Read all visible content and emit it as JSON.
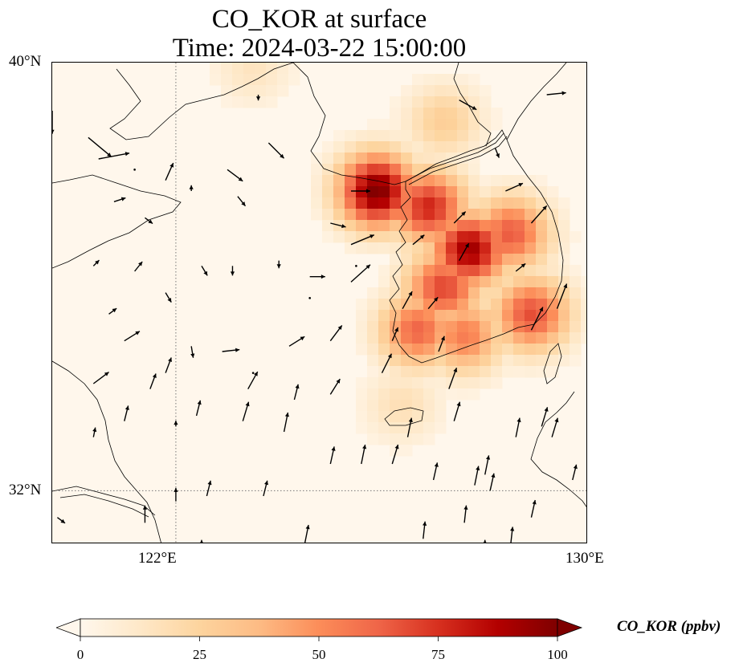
{
  "title": {
    "line1": "CO_KOR at surface",
    "line2": "Time: 2024-03-22 15:00:00"
  },
  "map": {
    "lon_range": [
      119.6,
      130
    ],
    "lat_range": [
      31,
      40
    ],
    "gridlines": {
      "lon": [
        122
      ],
      "lat": [
        32
      ]
    },
    "lat_labels": [
      {
        "value": 40,
        "text": "40°N"
      },
      {
        "value": 32,
        "text": "32°N"
      }
    ],
    "lon_labels": [
      {
        "value": 122,
        "text": "122°E"
      },
      {
        "value": 130,
        "text": "130°E"
      }
    ],
    "field": {
      "variable": "CO_KOR",
      "background_color": "#fff7ec",
      "hotspots": [
        {
          "lon": 125.9,
          "lat": 37.6,
          "value": 100
        },
        {
          "lon": 126.9,
          "lat": 37.3,
          "value": 78
        },
        {
          "lon": 127.7,
          "lat": 36.5,
          "value": 92
        },
        {
          "lon": 127.2,
          "lat": 35.8,
          "value": 70
        },
        {
          "lon": 128.5,
          "lat": 36.8,
          "value": 65
        },
        {
          "lon": 126.7,
          "lat": 35.0,
          "value": 62
        },
        {
          "lon": 128.9,
          "lat": 35.3,
          "value": 68
        },
        {
          "lon": 127.6,
          "lat": 34.9,
          "value": 55
        },
        {
          "lon": 127.2,
          "lat": 38.9,
          "value": 28
        },
        {
          "lon": 126.4,
          "lat": 33.6,
          "value": 18
        },
        {
          "lon": 123.5,
          "lat": 39.9,
          "value": 15
        }
      ]
    },
    "wind": {
      "note": "wind arrows; direction and relative speed",
      "arrows": [
        {
          "lon": 119.6,
          "lat": 39.1,
          "u": 0,
          "v": -1.2
        },
        {
          "lon": 120.3,
          "lat": 38.6,
          "u": 1.2,
          "v": -1.0
        },
        {
          "lon": 120.5,
          "lat": 38.2,
          "u": 1.6,
          "v": 0.3
        },
        {
          "lon": 120.8,
          "lat": 37.4,
          "u": 0.6,
          "v": 0.2
        },
        {
          "lon": 121.4,
          "lat": 37.1,
          "u": 0.4,
          "v": -0.3
        },
        {
          "lon": 121.2,
          "lat": 38.0,
          "u": 0,
          "v": 0
        },
        {
          "lon": 121.8,
          "lat": 37.8,
          "u": 0.4,
          "v": 0.9
        },
        {
          "lon": 122.3,
          "lat": 37.6,
          "u": 0,
          "v": 0.3
        },
        {
          "lon": 123.0,
          "lat": 38.0,
          "u": 0.8,
          "v": -0.6
        },
        {
          "lon": 123.2,
          "lat": 37.5,
          "u": 0.4,
          "v": -0.5
        },
        {
          "lon": 123.8,
          "lat": 38.5,
          "u": 0.8,
          "v": -0.8
        },
        {
          "lon": 123.6,
          "lat": 39.4,
          "u": 0,
          "v": -0.3
        },
        {
          "lon": 120.4,
          "lat": 36.2,
          "u": 0.3,
          "v": 0.3
        },
        {
          "lon": 121.2,
          "lat": 36.1,
          "u": 0.4,
          "v": 0.5
        },
        {
          "lon": 121.8,
          "lat": 35.7,
          "u": 0.3,
          "v": -0.5
        },
        {
          "lon": 122.5,
          "lat": 36.2,
          "u": 0.3,
          "v": -0.5
        },
        {
          "lon": 123.1,
          "lat": 36.2,
          "u": 0,
          "v": -0.5
        },
        {
          "lon": 124.0,
          "lat": 36.3,
          "u": 0,
          "v": -0.4
        },
        {
          "lon": 124.6,
          "lat": 36.0,
          "u": 0.8,
          "v": 0
        },
        {
          "lon": 125.4,
          "lat": 37.6,
          "u": 1.0,
          "v": 0
        },
        {
          "lon": 125.0,
          "lat": 37.0,
          "u": 0.8,
          "v": -0.2
        },
        {
          "lon": 125.4,
          "lat": 36.6,
          "u": 1.2,
          "v": 0.5
        },
        {
          "lon": 125.4,
          "lat": 35.9,
          "u": 1.0,
          "v": 0.9
        },
        {
          "lon": 125.5,
          "lat": 36.2,
          "u": 0,
          "v": 0
        },
        {
          "lon": 120.7,
          "lat": 35.3,
          "u": 0.4,
          "v": 0.3
        },
        {
          "lon": 121.0,
          "lat": 34.8,
          "u": 0.8,
          "v": 0.5
        },
        {
          "lon": 121.8,
          "lat": 34.2,
          "u": 0.3,
          "v": 0.8
        },
        {
          "lon": 122.3,
          "lat": 34.7,
          "u": 0.1,
          "v": -0.6
        },
        {
          "lon": 122.9,
          "lat": 34.6,
          "u": 0.9,
          "v": 0.1
        },
        {
          "lon": 123.5,
          "lat": 34.2,
          "u": 0,
          "v": 0
        },
        {
          "lon": 124.2,
          "lat": 34.7,
          "u": 0.8,
          "v": 0.5
        },
        {
          "lon": 124.6,
          "lat": 35.6,
          "u": 0,
          "v": 0
        },
        {
          "lon": 125.0,
          "lat": 34.8,
          "u": 0.6,
          "v": 0.8
        },
        {
          "lon": 120.4,
          "lat": 34.0,
          "u": 0.8,
          "v": 0.6
        },
        {
          "lon": 121.5,
          "lat": 33.9,
          "u": 0.3,
          "v": 0.8
        },
        {
          "lon": 122.0,
          "lat": 33.2,
          "u": 0,
          "v": 0.3
        },
        {
          "lon": 123.4,
          "lat": 33.9,
          "u": 0.5,
          "v": 0.9
        },
        {
          "lon": 124.3,
          "lat": 33.7,
          "u": 0.2,
          "v": 0.8
        },
        {
          "lon": 125.0,
          "lat": 33.8,
          "u": 0.5,
          "v": 0.8
        },
        {
          "lon": 126.0,
          "lat": 34.2,
          "u": 0.5,
          "v": 1.0
        },
        {
          "lon": 126.4,
          "lat": 35.4,
          "u": 0.5,
          "v": 0.9
        },
        {
          "lon": 126.6,
          "lat": 36.6,
          "u": 0.6,
          "v": 0.5
        },
        {
          "lon": 126.9,
          "lat": 35.4,
          "u": 0.5,
          "v": 0.6
        },
        {
          "lon": 127.5,
          "lat": 36.3,
          "u": 0.5,
          "v": 0.9
        },
        {
          "lon": 127.4,
          "lat": 37.0,
          "u": 0.6,
          "v": 0.6
        },
        {
          "lon": 128.4,
          "lat": 37.6,
          "u": 0.9,
          "v": 0.4
        },
        {
          "lon": 128.6,
          "lat": 36.1,
          "u": 0.5,
          "v": 0.4
        },
        {
          "lon": 128.9,
          "lat": 37.0,
          "u": 0.8,
          "v": 0.9
        },
        {
          "lon": 128.2,
          "lat": 38.4,
          "u": 0.2,
          "v": -0.5
        },
        {
          "lon": 127.5,
          "lat": 39.3,
          "u": 0.9,
          "v": -0.5
        },
        {
          "lon": 129.2,
          "lat": 39.4,
          "u": 1.0,
          "v": 0.1
        },
        {
          "lon": 128.9,
          "lat": 35.0,
          "u": 0.6,
          "v": 1.2
        },
        {
          "lon": 129.4,
          "lat": 35.4,
          "u": 0.5,
          "v": 1.3
        },
        {
          "lon": 126.2,
          "lat": 34.8,
          "u": 0.3,
          "v": 0.7
        },
        {
          "lon": 127.1,
          "lat": 34.6,
          "u": 0.3,
          "v": 0.8
        },
        {
          "lon": 127.4,
          "lat": 33.3,
          "u": 0.3,
          "v": 1.0
        },
        {
          "lon": 127.3,
          "lat": 33.9,
          "u": 0.4,
          "v": 1.1
        },
        {
          "lon": 126.5,
          "lat": 33.0,
          "u": 0.2,
          "v": 1.0
        },
        {
          "lon": 128.6,
          "lat": 33.0,
          "u": 0.2,
          "v": 1.0
        },
        {
          "lon": 129.3,
          "lat": 33.0,
          "u": 0.3,
          "v": 1.0
        },
        {
          "lon": 129.1,
          "lat": 33.2,
          "u": 0.3,
          "v": 1.0
        },
        {
          "lon": 120.4,
          "lat": 33.0,
          "u": 0.1,
          "v": 0.5
        },
        {
          "lon": 121.0,
          "lat": 33.3,
          "u": 0.2,
          "v": 0.8
        },
        {
          "lon": 122.4,
          "lat": 33.4,
          "u": 0.2,
          "v": 0.8
        },
        {
          "lon": 123.3,
          "lat": 33.3,
          "u": 0.3,
          "v": 1.0
        },
        {
          "lon": 124.1,
          "lat": 33.1,
          "u": 0.2,
          "v": 1.0
        },
        {
          "lon": 125.0,
          "lat": 32.5,
          "u": 0.2,
          "v": 0.9
        },
        {
          "lon": 125.6,
          "lat": 32.5,
          "u": 0.2,
          "v": 1.0
        },
        {
          "lon": 126.2,
          "lat": 32.5,
          "u": 0.3,
          "v": 1.0
        },
        {
          "lon": 127.0,
          "lat": 32.2,
          "u": 0.2,
          "v": 0.9
        },
        {
          "lon": 127.8,
          "lat": 32.1,
          "u": 0.2,
          "v": 1.0
        },
        {
          "lon": 128.0,
          "lat": 32.3,
          "u": 0.2,
          "v": 1.0
        },
        {
          "lon": 128.1,
          "lat": 32.0,
          "u": 0.2,
          "v": 0.9
        },
        {
          "lon": 129.7,
          "lat": 32.2,
          "u": 0.2,
          "v": 0.8
        },
        {
          "lon": 119.7,
          "lat": 31.5,
          "u": 0.4,
          "v": -0.3
        },
        {
          "lon": 121.4,
          "lat": 31.4,
          "u": 0,
          "v": 0.9
        },
        {
          "lon": 122.0,
          "lat": 31.8,
          "u": 0,
          "v": 0.7
        },
        {
          "lon": 122.6,
          "lat": 31.9,
          "u": 0.2,
          "v": 0.8
        },
        {
          "lon": 123.7,
          "lat": 31.9,
          "u": 0.2,
          "v": 0.8
        },
        {
          "lon": 124.5,
          "lat": 31.0,
          "u": 0.2,
          "v": 1.0
        },
        {
          "lon": 126.8,
          "lat": 31.1,
          "u": 0.1,
          "v": 0.9
        },
        {
          "lon": 127.6,
          "lat": 31.4,
          "u": 0.1,
          "v": 0.9
        },
        {
          "lon": 128.5,
          "lat": 31.0,
          "u": 0.1,
          "v": 0.9
        },
        {
          "lon": 128.9,
          "lat": 31.5,
          "u": 0.2,
          "v": 0.9
        },
        {
          "lon": 128.0,
          "lat": 30.9,
          "u": 0,
          "v": 0.5
        },
        {
          "lon": 122.5,
          "lat": 30.9,
          "u": 0,
          "v": 0.5
        }
      ]
    }
  },
  "colorbar": {
    "label": "CO_KOR (ppbv)",
    "min": 0,
    "max": 100,
    "extend": "both",
    "ticks": [
      {
        "value": 0,
        "text": "0"
      },
      {
        "value": 25,
        "text": "25"
      },
      {
        "value": 50,
        "text": "50"
      },
      {
        "value": 75,
        "text": "75"
      },
      {
        "value": 100,
        "text": "100"
      }
    ],
    "colors": [
      "#fff7ec",
      "#fee8c8",
      "#fdd49e",
      "#fdbb84",
      "#fc8d59",
      "#ef6548",
      "#d7301f",
      "#b30000",
      "#7f0000"
    ]
  }
}
